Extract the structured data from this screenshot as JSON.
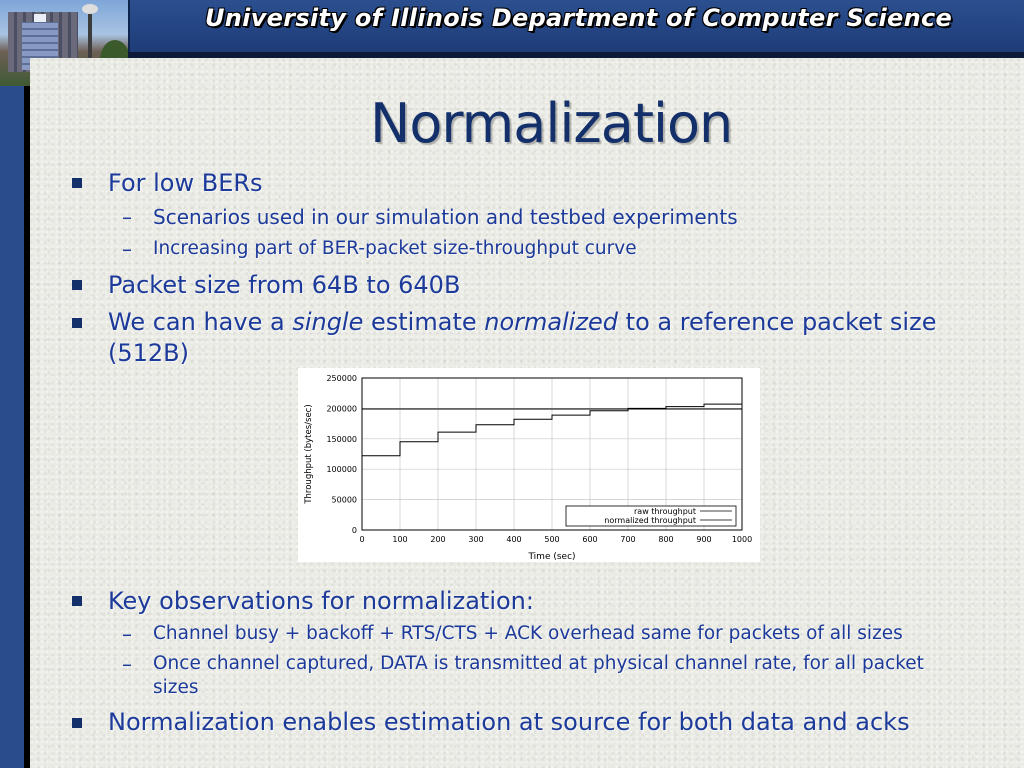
{
  "header": {
    "banner_title": "University of Illinois Department of Computer Science"
  },
  "slide": {
    "title": "Normalization",
    "bullets": {
      "b1": {
        "text": "For low BERs",
        "subs": [
          "Scenarios used in our simulation and testbed experiments",
          "Increasing part of BER-packet size-throughput curve"
        ]
      },
      "b2": {
        "text": "Packet size from 64B to 640B"
      },
      "b3": {
        "pre": "We can have a ",
        "em1": "single",
        "mid": " estimate ",
        "em2": "normalized",
        "post": " to a reference packet size",
        "line2": "(512B)"
      },
      "b4": {
        "text": "Key observations for normalization:",
        "subs": [
          "Channel busy + backoff + RTS/CTS + ACK overhead same for packets of all sizes",
          "Once channel captured, DATA is transmitted at physical channel rate, for all packet",
          "sizes"
        ]
      },
      "b5": {
        "text": "Normalization enables estimation at source for both data and acks"
      }
    },
    "dash_glyph": "–"
  },
  "chart_data": {
    "type": "line",
    "xlabel": "Time (sec)",
    "ylabel": "Throughput (bytes/sec)",
    "xlim": [
      0,
      1000
    ],
    "ylim": [
      0,
      250000
    ],
    "xticks": [
      0,
      100,
      200,
      300,
      400,
      500,
      600,
      700,
      800,
      900,
      1000
    ],
    "yticks": [
      0,
      50000,
      100000,
      150000,
      200000,
      250000
    ],
    "legend_position": "bottom-right",
    "grid": true,
    "series": [
      {
        "name": "raw throughput",
        "style": "step",
        "x": [
          0,
          100,
          100,
          200,
          200,
          300,
          300,
          400,
          400,
          500,
          500,
          600,
          600,
          700,
          700,
          800,
          800,
          900,
          900,
          1000
        ],
        "y": [
          122000,
          122000,
          145000,
          145000,
          161000,
          161000,
          173000,
          173000,
          182000,
          182000,
          189000,
          189000,
          196000,
          196000,
          200000,
          200000,
          203000,
          203000,
          207000,
          207000
        ]
      },
      {
        "name": "normalized throughput",
        "style": "line",
        "x": [
          0,
          1000
        ],
        "y": [
          199000,
          199000
        ]
      }
    ]
  }
}
